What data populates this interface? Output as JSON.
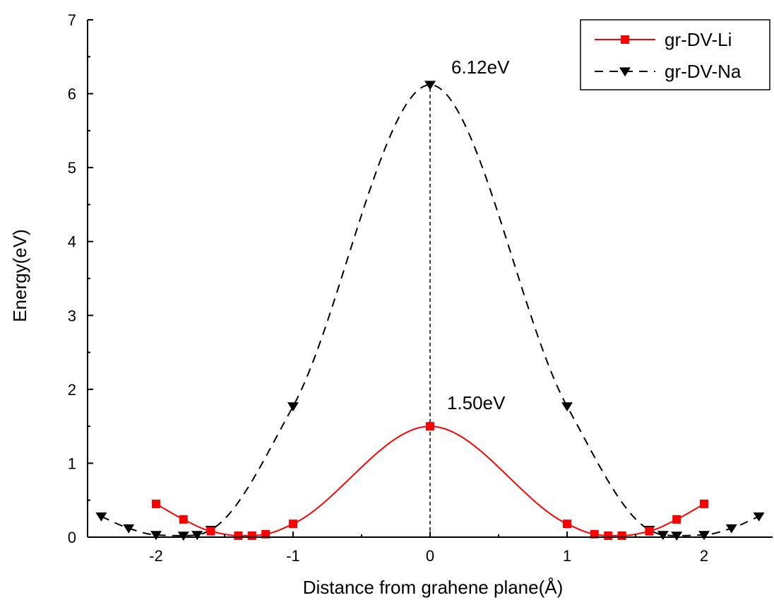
{
  "chart_data": {
    "type": "line",
    "xlabel": "Distance from grahene plane(Å)",
    "ylabel": "Energy(eV)",
    "xlim": [
      -2.5,
      2.5
    ],
    "ylim": [
      0,
      7
    ],
    "xticks": [
      -2,
      -1,
      0,
      1,
      2
    ],
    "xtick_labels": [
      "-2",
      "-1",
      "0",
      "1",
      "2"
    ],
    "yticks": [
      0,
      1,
      2,
      3,
      4,
      5,
      6,
      7
    ],
    "ytick_labels": [
      "0",
      "1",
      "2",
      "3",
      "4",
      "5",
      "6",
      "7"
    ],
    "legend_position": "top-right",
    "series": [
      {
        "name": "gr-DV-Li",
        "color": "#ff0000",
        "line_style": "solid",
        "marker": "square",
        "x": [
          -2.0,
          -1.8,
          -1.6,
          -1.4,
          -1.3,
          -1.2,
          -1.0,
          0.0,
          1.0,
          1.2,
          1.3,
          1.4,
          1.6,
          1.8,
          2.0
        ],
        "y": [
          0.45,
          0.24,
          0.08,
          0.02,
          0.02,
          0.04,
          0.18,
          1.5,
          0.18,
          0.04,
          0.02,
          0.02,
          0.08,
          0.24,
          0.45
        ]
      },
      {
        "name": "gr-DV-Na",
        "color": "#000000",
        "line_style": "dashed",
        "marker": "triangle-down",
        "x": [
          -2.4,
          -2.2,
          -2.0,
          -1.8,
          -1.7,
          -1.6,
          -1.0,
          0.0,
          1.0,
          1.6,
          1.7,
          1.8,
          2.0,
          2.2,
          2.4
        ],
        "y": [
          0.28,
          0.12,
          0.03,
          0.02,
          0.03,
          0.1,
          1.77,
          6.12,
          1.77,
          0.1,
          0.03,
          0.02,
          0.03,
          0.12,
          0.28
        ]
      }
    ],
    "annotations": [
      {
        "text": "6.12eV",
        "x": 0.0,
        "y": 6.12
      },
      {
        "text": "1.50eV",
        "x": 0.0,
        "y": 1.5
      }
    ],
    "vertical_reference": {
      "x": 0.0,
      "y_from": 0,
      "y_to": 6.12,
      "style": "dashed"
    }
  }
}
